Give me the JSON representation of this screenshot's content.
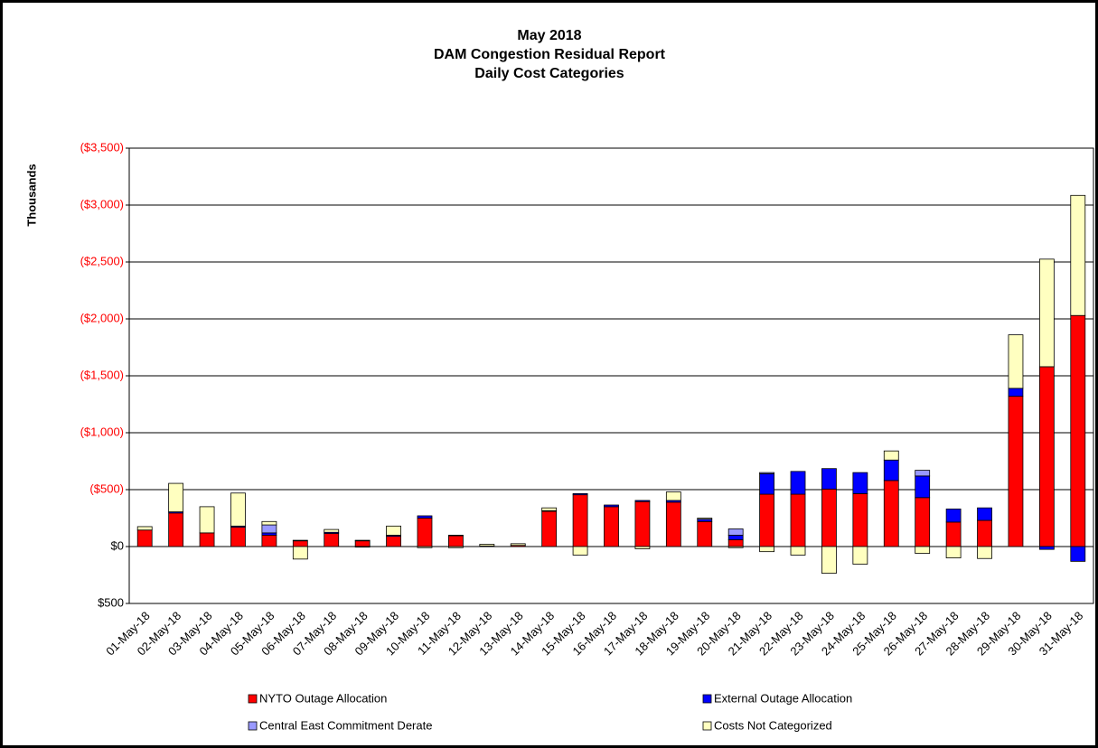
{
  "chart_data": {
    "type": "stacked_bar",
    "title": [
      "May 2018",
      "DAM Congestion Residual Report",
      "Daily Cost Categories"
    ],
    "y_label": "Thousands",
    "categories": [
      "01-May-18",
      "02-May-18",
      "03-May-18",
      "04-May-18",
      "05-May-18",
      "06-May-18",
      "07-May-18",
      "08-May-18",
      "09-May-18",
      "10-May-18",
      "11-May-18",
      "12-May-18",
      "13-May-18",
      "14-May-18",
      "15-May-18",
      "16-May-18",
      "17-May-18",
      "18-May-18",
      "19-May-18",
      "20-May-18",
      "21-May-18",
      "22-May-18",
      "23-May-18",
      "24-May-18",
      "25-May-18",
      "26-May-18",
      "27-May-18",
      "28-May-18",
      "29-May-18",
      "30-May-18",
      "31-May-18"
    ],
    "series": [
      {
        "name": "NYTO Outage Allocation",
        "color": "#ff0000",
        "values": [
          -145,
          -295,
          -120,
          -170,
          -100,
          -50,
          -115,
          -50,
          -90,
          -250,
          -95,
          -5,
          -10,
          -310,
          -455,
          -350,
          -395,
          -390,
          -220,
          -60,
          -460,
          -460,
          -505,
          -465,
          -580,
          -430,
          -215,
          -230,
          -1320,
          -1580,
          -2030
        ]
      },
      {
        "name": "External Outage Allocation",
        "color": "#0000ff",
        "values": [
          0,
          -10,
          0,
          -10,
          -20,
          -5,
          -10,
          -5,
          -10,
          -20,
          -5,
          0,
          0,
          -5,
          -10,
          -15,
          -10,
          -15,
          -20,
          -40,
          -180,
          -200,
          -180,
          -185,
          -180,
          -190,
          -115,
          -110,
          -70,
          25,
          130
        ]
      },
      {
        "name": "Central East Commitment Derate",
        "color": "#9999ff",
        "values": [
          0,
          0,
          0,
          0,
          -70,
          0,
          0,
          0,
          0,
          0,
          0,
          0,
          0,
          0,
          0,
          0,
          0,
          0,
          0,
          -55,
          -10,
          0,
          0,
          0,
          0,
          -50,
          0,
          0,
          0,
          0,
          0
        ]
      },
      {
        "name": "Costs Not Categorized",
        "color": "#ffffc0",
        "values": [
          -30,
          -250,
          -230,
          -290,
          -30,
          110,
          -25,
          5,
          -80,
          10,
          10,
          -15,
          -15,
          -25,
          75,
          0,
          20,
          -75,
          -10,
          10,
          45,
          75,
          235,
          155,
          -80,
          60,
          100,
          105,
          -470,
          -945,
          -1055
        ]
      }
    ],
    "ylim": [
      500,
      -3500
    ],
    "yticks": [
      {
        "value": 500,
        "label": "$500"
      },
      {
        "value": 0,
        "label": "$0"
      },
      {
        "value": -500,
        "label": "($500)"
      },
      {
        "value": -1000,
        "label": "($1,000)"
      },
      {
        "value": -1500,
        "label": "($1,500)"
      },
      {
        "value": -2000,
        "label": "($2,000)"
      },
      {
        "value": -2500,
        "label": "($2,500)"
      },
      {
        "value": -3000,
        "label": "($3,000)"
      },
      {
        "value": -3500,
        "label": "($3,500)"
      }
    ],
    "negative_tick_color": "#ff0000",
    "grid": true
  }
}
